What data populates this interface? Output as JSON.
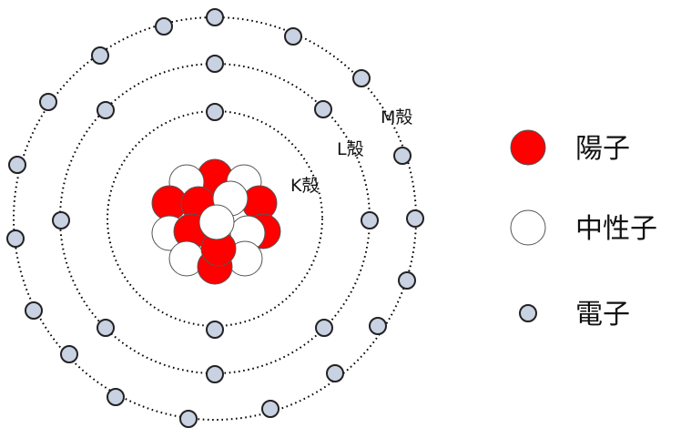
{
  "shells": {
    "k": {
      "label": "K殻",
      "electrons": 2
    },
    "l": {
      "label": "L殻",
      "electrons": 8
    },
    "m": {
      "label": "M殻",
      "electrons": 18
    }
  },
  "nucleus": {
    "protons": 12,
    "neutrons": 12
  },
  "legend": {
    "proton": {
      "label": "陽子",
      "color": "#ff0000"
    },
    "neutron": {
      "label": "中性子",
      "color": "#ffffff"
    },
    "electron": {
      "label": "電子",
      "color": "#c9d2e2"
    }
  }
}
